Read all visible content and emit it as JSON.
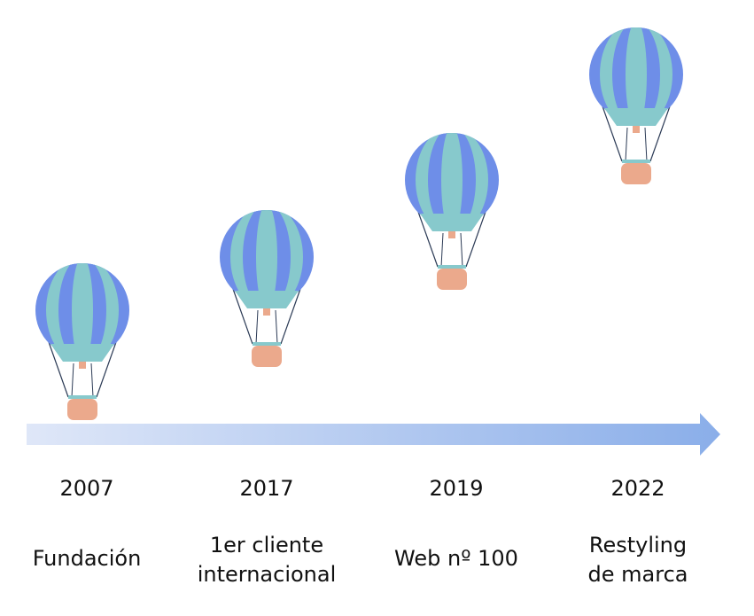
{
  "milestones": [
    {
      "year": "2007",
      "label": [
        "Fundación"
      ]
    },
    {
      "year": "2017",
      "label": [
        "1er cliente",
        "internacional"
      ]
    },
    {
      "year": "2019",
      "label": [
        "Web nº 100"
      ]
    },
    {
      "year": "2022",
      "label": [
        "Restyling",
        "de marca"
      ]
    }
  ]
}
